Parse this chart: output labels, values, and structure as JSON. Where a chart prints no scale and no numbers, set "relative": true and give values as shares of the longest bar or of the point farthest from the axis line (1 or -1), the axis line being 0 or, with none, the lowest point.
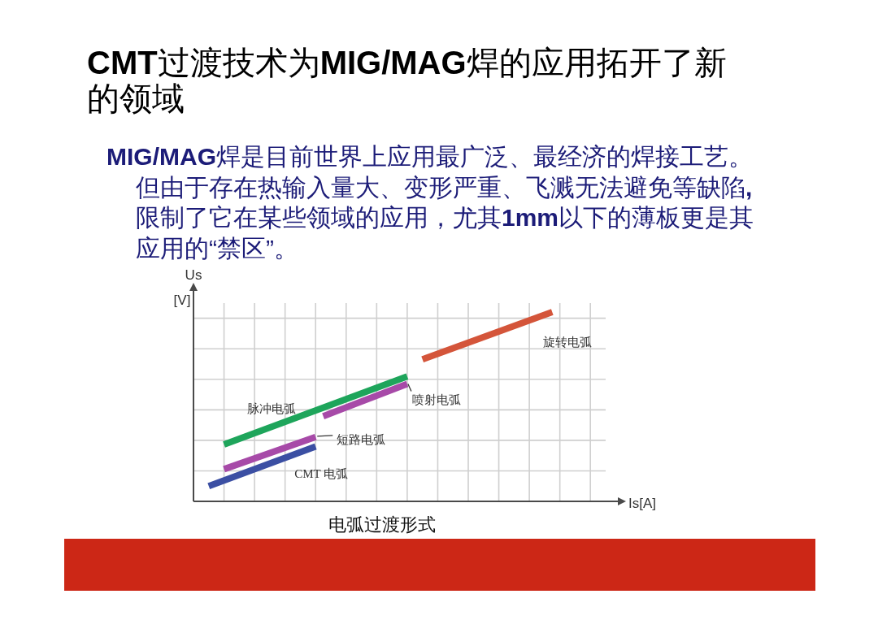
{
  "chart_data": {
    "type": "line",
    "relative": true,
    "title": "CMT过渡技术为MIG/MAG焊的应用拓开了新的领域",
    "subtitle": "MIG/MAG焊是目前世界上应用最广泛、最经济的焊接工艺。但由于存在热输入量大、变形严重、飞溅无法避免等缺陷,限制了它在某些领域的应用，尤其1mm以下的薄板更是其应用的“禁区”。",
    "xlabel": "Is[A]",
    "ylabel": "Us [V]",
    "annotations": [
      "电弧过渡形式"
    ],
    "grid": true,
    "line_style": "solid",
    "categories": [
      null,
      null,
      null,
      null,
      null,
      null,
      null,
      null,
      null,
      null,
      null,
      null,
      null,
      null,
      null,
      null,
      null,
      null,
      null,
      null,
      null,
      null,
      null,
      null,
      null,
      null,
      null,
      null,
      null,
      null,
      null,
      null,
      null,
      null,
      null,
      null,
      null,
      null,
      null,
      null,
      null,
      null,
      null,
      null,
      null,
      null,
      null,
      null,
      null,
      null,
      null,
      null,
      null,
      null,
      null
    ],
    "series": [
      {
        "name": "CMT 电弧",
        "color": "#3b4fa3",
        "values": [
          null,
          null,
          0.08,
          null,
          null,
          null,
          null,
          null,
          null,
          null,
          null,
          null,
          null,
          null,
          null,
          null,
          0.29,
          null,
          null,
          null,
          null,
          null,
          null,
          null,
          null,
          null,
          null,
          null,
          null,
          null,
          null,
          null,
          null,
          null,
          null,
          null,
          null,
          null,
          null,
          null,
          null,
          null,
          null,
          null,
          null,
          null,
          null,
          null,
          null,
          null,
          null,
          null,
          null,
          null,
          null
        ]
      },
      {
        "name": "短路电弧",
        "color": "#a74aa8",
        "values": [
          null,
          null,
          null,
          null,
          0.17,
          null,
          null,
          null,
          null,
          null,
          null,
          null,
          null,
          null,
          null,
          null,
          0.34,
          null,
          null,
          null,
          null,
          null,
          null,
          null,
          null,
          null,
          null,
          null,
          null,
          null,
          null,
          null,
          null,
          null,
          null,
          null,
          null,
          null,
          null,
          null,
          null,
          null,
          null,
          null,
          null,
          null,
          null,
          null,
          null,
          null,
          null,
          null,
          null,
          null,
          null
        ]
      },
      {
        "name": "脉冲电弧",
        "color": "#1ea55b",
        "values": [
          null,
          null,
          null,
          null,
          0.3,
          null,
          null,
          null,
          null,
          null,
          null,
          null,
          null,
          null,
          null,
          null,
          null,
          null,
          null,
          null,
          null,
          null,
          null,
          null,
          null,
          null,
          null,
          null,
          0.66,
          null,
          null,
          null,
          null,
          null,
          null,
          null,
          null,
          null,
          null,
          null,
          null,
          null,
          null,
          null,
          null,
          null,
          null,
          null,
          null,
          null,
          null,
          null,
          null,
          null,
          null
        ]
      },
      {
        "name": "喷射电弧",
        "color": "#a74aa8",
        "values": [
          null,
          null,
          null,
          null,
          null,
          null,
          null,
          null,
          null,
          null,
          null,
          null,
          null,
          null,
          null,
          null,
          null,
          0.45,
          null,
          null,
          null,
          null,
          null,
          null,
          null,
          null,
          null,
          null,
          0.62,
          null,
          null,
          null,
          null,
          null,
          null,
          null,
          null,
          null,
          null,
          null,
          null,
          null,
          null,
          null,
          null,
          null,
          null,
          null,
          null,
          null,
          null,
          null,
          null,
          null,
          null
        ]
      },
      {
        "name": "旋转电弧",
        "color": "#d4553a",
        "values": [
          null,
          null,
          null,
          null,
          null,
          null,
          null,
          null,
          null,
          null,
          null,
          null,
          null,
          null,
          null,
          null,
          null,
          null,
          null,
          null,
          null,
          null,
          null,
          null,
          null,
          null,
          null,
          null,
          null,
          null,
          0.75,
          null,
          null,
          null,
          null,
          null,
          null,
          null,
          null,
          null,
          null,
          null,
          null,
          null,
          null,
          null,
          null,
          1.0,
          null,
          null,
          null,
          null,
          null,
          null,
          null
        ]
      }
    ]
  }
}
